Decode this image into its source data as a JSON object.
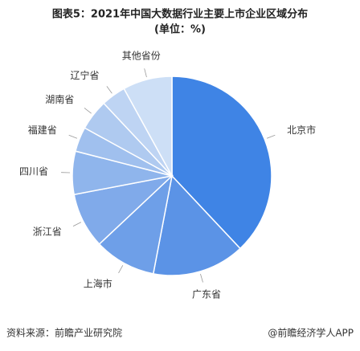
{
  "chart_data": {
    "type": "pie",
    "title": "图表5：2021年中国大数据行业主要上市企业区域分布",
    "subtitle": "(单位：%)",
    "categories": [
      "北京市",
      "广东省",
      "上海市",
      "浙江省",
      "四川省",
      "福建省",
      "湖南省",
      "辽宁省",
      "其他省份"
    ],
    "values": [
      38,
      15,
      10,
      9,
      7,
      4,
      5,
      4,
      8
    ],
    "colors": [
      "#3f84e5",
      "#5b93e6",
      "#6e9fe8",
      "#80aaea",
      "#8fb5ec",
      "#a0c0ee",
      "#afcaf0",
      "#bed4f3",
      "#cddff6"
    ],
    "source": "资料来源：前瞻产业研究院",
    "credit": "@前瞻经济学人APP"
  }
}
